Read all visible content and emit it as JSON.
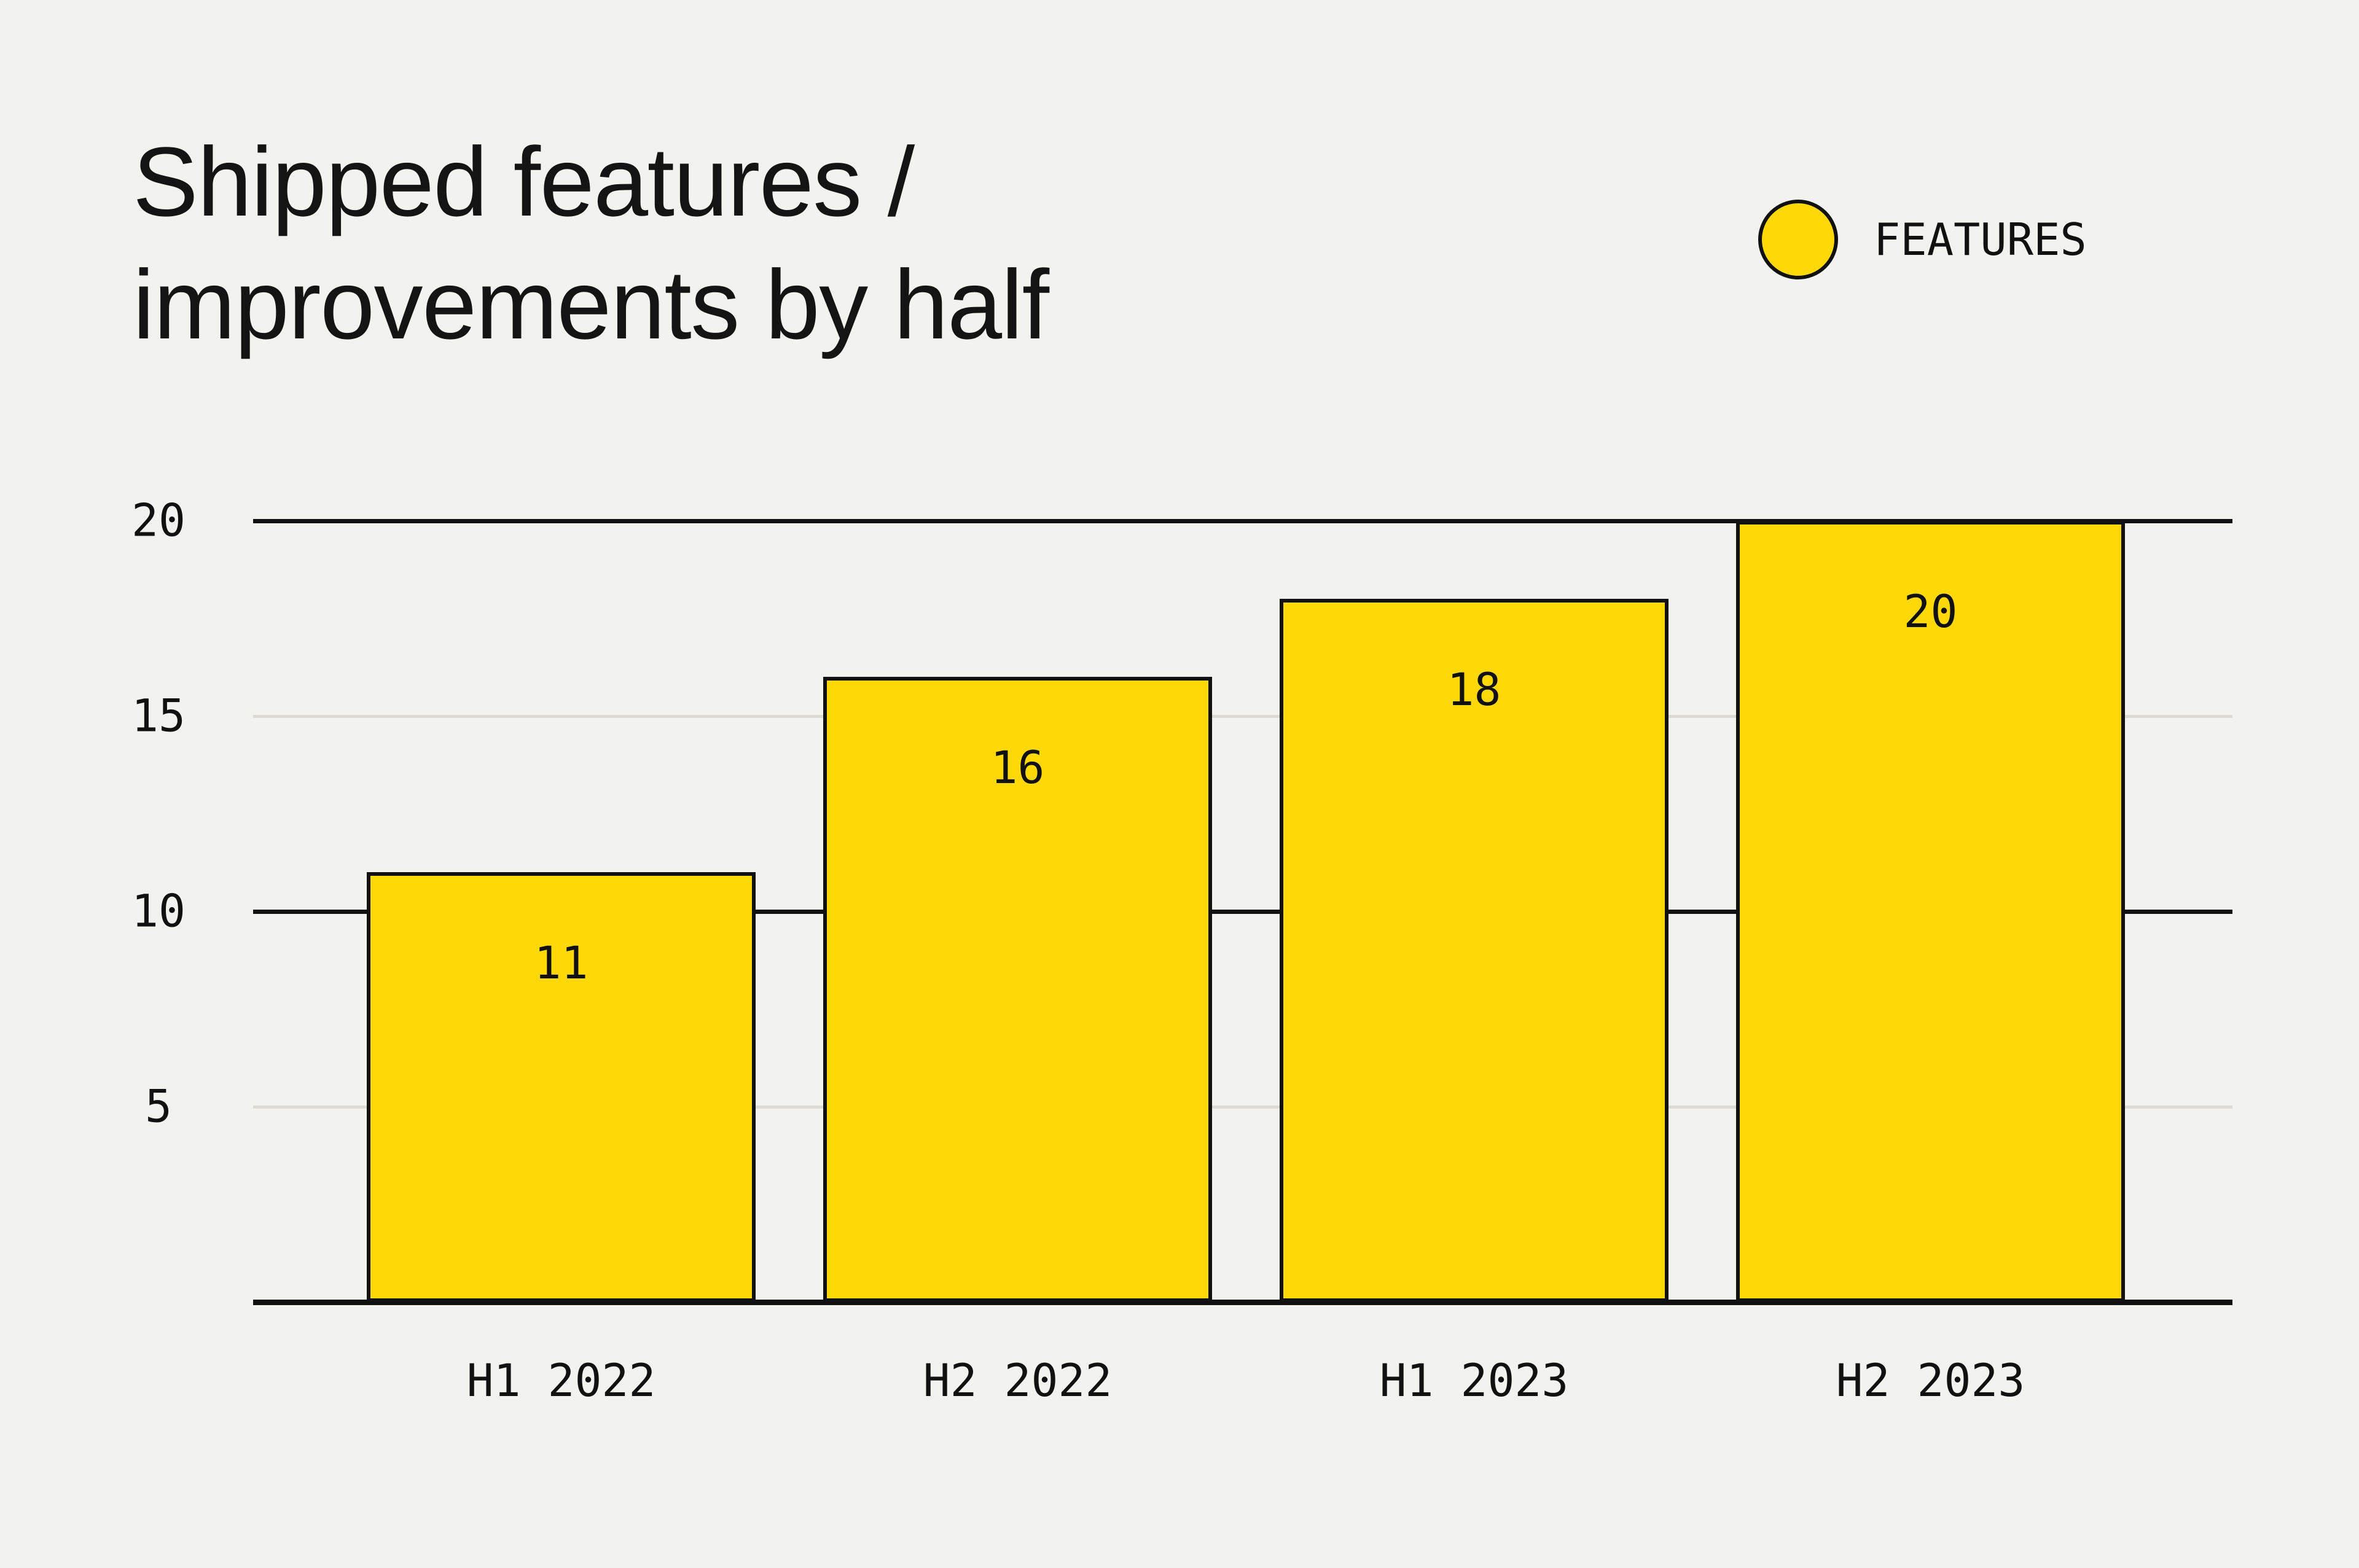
{
  "page": {
    "background": "#F2F3EF"
  },
  "title": {
    "line1": "Shipped features /",
    "line2": "improvements by half"
  },
  "legend": {
    "label": "FEATURES",
    "marker_color": "#FFD907",
    "marker_border": "#111111",
    "position": "top-right"
  },
  "colors": {
    "background": "#F2F3EF",
    "bar_fill": "#FFD907",
    "bar_border": "#111111",
    "major_gridline": "#111111",
    "minor_gridline": "#DBDBD3",
    "baseline": "#111111",
    "text": "#141414"
  },
  "chart_data": {
    "type": "bar",
    "title": "Shipped features / improvements by half",
    "categories": [
      "H1 2022",
      "H2 2022",
      "H1 2023",
      "H2 2023"
    ],
    "series": [
      {
        "name": "FEATURES",
        "values": [
          11,
          16,
          18,
          20
        ]
      }
    ],
    "data_labels_shown": true,
    "xlabel": "",
    "ylabel": "",
    "ylim": [
      0,
      20
    ],
    "yticks": [
      5,
      10,
      15,
      20
    ],
    "major_gridline_values": [
      10,
      20
    ],
    "minor_gridline_values": [
      5,
      15
    ],
    "grid": true,
    "legend_position": "top-right"
  }
}
